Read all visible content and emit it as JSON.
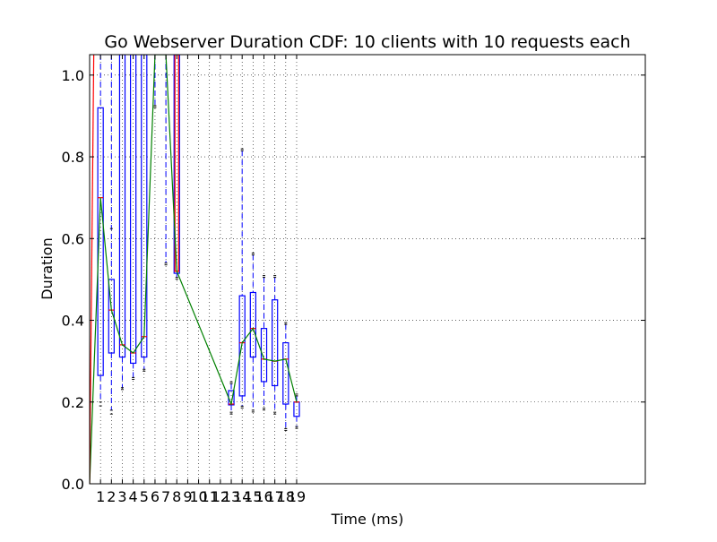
{
  "chart_data": {
    "type": "box",
    "title": "Go Webserver Duration CDF: 10 clients with 10 requests each",
    "xlabel": "Time (ms)",
    "ylabel": "Duration",
    "ylim": [
      0.0,
      1.05
    ],
    "xlim": [
      0,
      51
    ],
    "yticks": [
      0.0,
      0.2,
      0.4,
      0.6,
      0.8,
      1.0
    ],
    "ytick_labels": [
      "0.0",
      "0.2",
      "0.4",
      "0.6",
      "0.8",
      "1.0"
    ],
    "xticks": [
      1,
      2,
      3,
      4,
      5,
      6,
      7,
      8,
      9,
      10,
      11,
      12,
      13,
      14,
      15,
      16,
      17,
      18,
      19
    ],
    "xtick_labels": [
      "1",
      "2",
      "3",
      "4",
      "5",
      "6",
      "7",
      "8",
      "9",
      "10",
      "11",
      "12",
      "13",
      "14",
      "15",
      "16",
      "17",
      "18",
      "19"
    ],
    "grid": true,
    "colors": {
      "box": "#0000ff",
      "median": "#ff0000",
      "line": "#008000",
      "flier": "#000000",
      "grid": "#000000"
    },
    "boxes": [
      {
        "x": 1,
        "q1": 0.265,
        "q3": 0.92,
        "median": 0.7,
        "wlo": 0.2,
        "whi": 1.05,
        "flier_lo": 0.195
      },
      {
        "x": 2,
        "q1": 0.32,
        "q3": 0.5,
        "median": 0.425,
        "wlo": 0.18,
        "whi": 1.05,
        "flier_lo": 0.175,
        "flier_hi": 0.62
      },
      {
        "x": 3,
        "q1": 0.31,
        "q3": 1.05,
        "median": 0.34,
        "wlo": 0.235,
        "whi": 1.05,
        "flier_lo": 0.235
      },
      {
        "x": 4,
        "q1": 0.295,
        "q3": 1.05,
        "median": 0.32,
        "wlo": 0.26,
        "whi": 1.05,
        "flier_lo": 0.26
      },
      {
        "x": 5,
        "q1": 0.31,
        "q3": 1.05,
        "median": 0.36,
        "wlo": 0.28,
        "whi": 1.05,
        "flier_lo": 0.28
      },
      {
        "x": 6,
        "q1": null,
        "q3": null,
        "median": null,
        "wlo": 0.925,
        "whi": 1.05,
        "flier_lo": 0.925
      },
      {
        "x": 7,
        "q1": null,
        "q3": null,
        "median": null,
        "wlo": 0.54,
        "whi": 1.05,
        "flier_lo": 0.54
      },
      {
        "x": 8,
        "q1": 0.515,
        "q3": 1.05,
        "median": 0.52,
        "wlo": 0.505,
        "whi": 1.05,
        "flier_lo": 0.505,
        "median_full": true
      },
      {
        "x": 13,
        "q1": 0.193,
        "q3": 0.228,
        "median": 0.195,
        "wlo": 0.175,
        "whi": 0.245,
        "flier_lo": 0.175,
        "flier_hi": 0.245
      },
      {
        "x": 14,
        "q1": 0.215,
        "q3": 0.46,
        "median": 0.345,
        "wlo": 0.19,
        "whi": 0.815,
        "flier_lo": 0.19,
        "flier_hi": 0.815
      },
      {
        "x": 15,
        "q1": 0.31,
        "q3": 0.468,
        "median": 0.38,
        "wlo": 0.18,
        "whi": 0.56,
        "flier_lo": 0.18,
        "flier_hi": 0.56
      },
      {
        "x": 16,
        "q1": 0.25,
        "q3": 0.38,
        "median": 0.305,
        "wlo": 0.185,
        "whi": 0.505,
        "flier_lo": 0.185,
        "flier_hi": 0.505
      },
      {
        "x": 17,
        "q1": 0.24,
        "q3": 0.45,
        "median": 0.3,
        "wlo": 0.175,
        "whi": 0.505,
        "flier_lo": 0.175,
        "flier_hi": 0.505
      },
      {
        "x": 18,
        "q1": 0.195,
        "q3": 0.345,
        "median": 0.305,
        "wlo": 0.135,
        "whi": 0.39,
        "flier_lo": 0.135,
        "flier_hi": 0.39
      },
      {
        "x": 19,
        "q1": 0.165,
        "q3": 0.2,
        "median": 0.2,
        "wlo": 0.14,
        "whi": 0.215,
        "flier_lo": 0.14,
        "flier_hi": 0.215
      }
    ],
    "median_line": {
      "x": [
        0,
        1,
        2,
        3,
        4,
        5,
        6,
        7,
        8,
        13,
        14,
        15,
        16,
        17,
        18,
        19
      ],
      "y": [
        0.0,
        0.7,
        0.425,
        0.34,
        0.32,
        0.36,
        1.05,
        1.05,
        0.52,
        0.195,
        0.345,
        0.38,
        0.305,
        0.3,
        0.305,
        0.2
      ]
    },
    "red_line": {
      "x": [
        0,
        0.38
      ],
      "y": [
        0.0,
        1.05
      ]
    }
  }
}
